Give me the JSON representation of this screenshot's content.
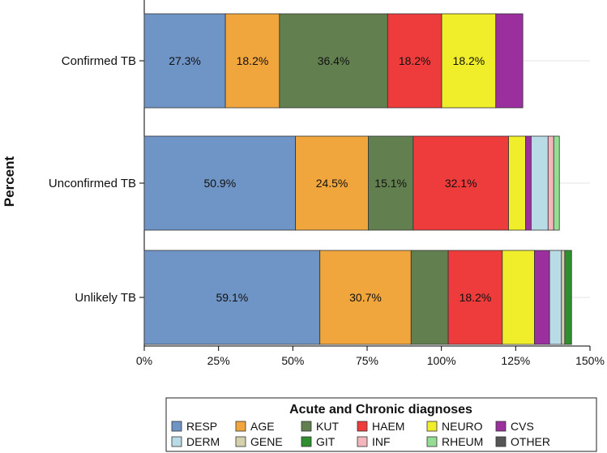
{
  "chart_data": {
    "type": "bar",
    "orientation": "horizontal",
    "stacked": true,
    "title": "",
    "xlabel": "",
    "ylabel": "Percent",
    "xlim": [
      0,
      150
    ],
    "xticks": [
      0,
      25,
      50,
      75,
      100,
      125,
      150
    ],
    "xtick_labels": [
      "0%",
      "25%",
      "50%",
      "75%",
      "100%",
      "125%",
      "150%"
    ],
    "grid": true,
    "categories": [
      "Confirmed TB",
      "Unconfirmed TB",
      "Unlikely TB"
    ],
    "series": [
      {
        "name": "RESP",
        "color": "#6f94c6",
        "values": [
          27.3,
          50.9,
          59.1
        ],
        "labels": [
          "27.3%",
          "50.9%",
          "59.1%"
        ]
      },
      {
        "name": "AGE",
        "color": "#f0a63d",
        "values": [
          18.2,
          24.5,
          30.7
        ],
        "labels": [
          "18.2%",
          "24.5%",
          "30.7%"
        ]
      },
      {
        "name": "KUT",
        "color": "#62804f",
        "values": [
          36.4,
          15.1,
          12.5
        ],
        "labels": [
          "36.4%",
          "15.1%",
          ""
        ]
      },
      {
        "name": "HAEM",
        "color": "#ee3b3b",
        "values": [
          18.2,
          32.1,
          18.2
        ],
        "labels": [
          "18.2%",
          "32.1%",
          "18.2%"
        ]
      },
      {
        "name": "NEURO",
        "color": "#f0ed2a",
        "values": [
          18.2,
          5.7,
          10.8
        ],
        "labels": [
          "18.2%",
          "",
          ""
        ]
      },
      {
        "name": "CVS",
        "color": "#9b2f9e",
        "values": [
          9.1,
          1.9,
          5.1
        ],
        "labels": [
          "",
          "",
          ""
        ]
      },
      {
        "name": "DERM",
        "color": "#b9dbe6",
        "values": [
          0,
          5.7,
          4.0
        ],
        "labels": [
          "",
          "",
          ""
        ]
      },
      {
        "name": "GENE",
        "color": "#d6d1ad",
        "values": [
          0,
          0,
          1.1
        ],
        "labels": [
          "",
          "",
          ""
        ]
      },
      {
        "name": "GIT",
        "color": "#2f8f2f",
        "values": [
          0,
          0,
          2.3
        ],
        "labels": [
          "",
          "",
          ""
        ]
      },
      {
        "name": "INF",
        "color": "#f3b6bd",
        "values": [
          0,
          1.9,
          0
        ],
        "labels": [
          "",
          "",
          ""
        ]
      },
      {
        "name": "RHEUM",
        "color": "#95dc95",
        "values": [
          0,
          1.9,
          0
        ],
        "labels": [
          "",
          "",
          ""
        ]
      },
      {
        "name": "OTHER",
        "color": "#555555",
        "values": [
          0,
          0,
          0
        ],
        "labels": [
          "",
          "",
          ""
        ]
      }
    ],
    "legend": {
      "title": "Acute and Chronic diagnoses",
      "position": "bottom",
      "items": [
        "RESP",
        "AGE",
        "KUT",
        "HAEM",
        "NEURO",
        "CVS",
        "DERM",
        "GENE",
        "GIT",
        "INF",
        "RHEUM",
        "OTHER"
      ]
    }
  }
}
